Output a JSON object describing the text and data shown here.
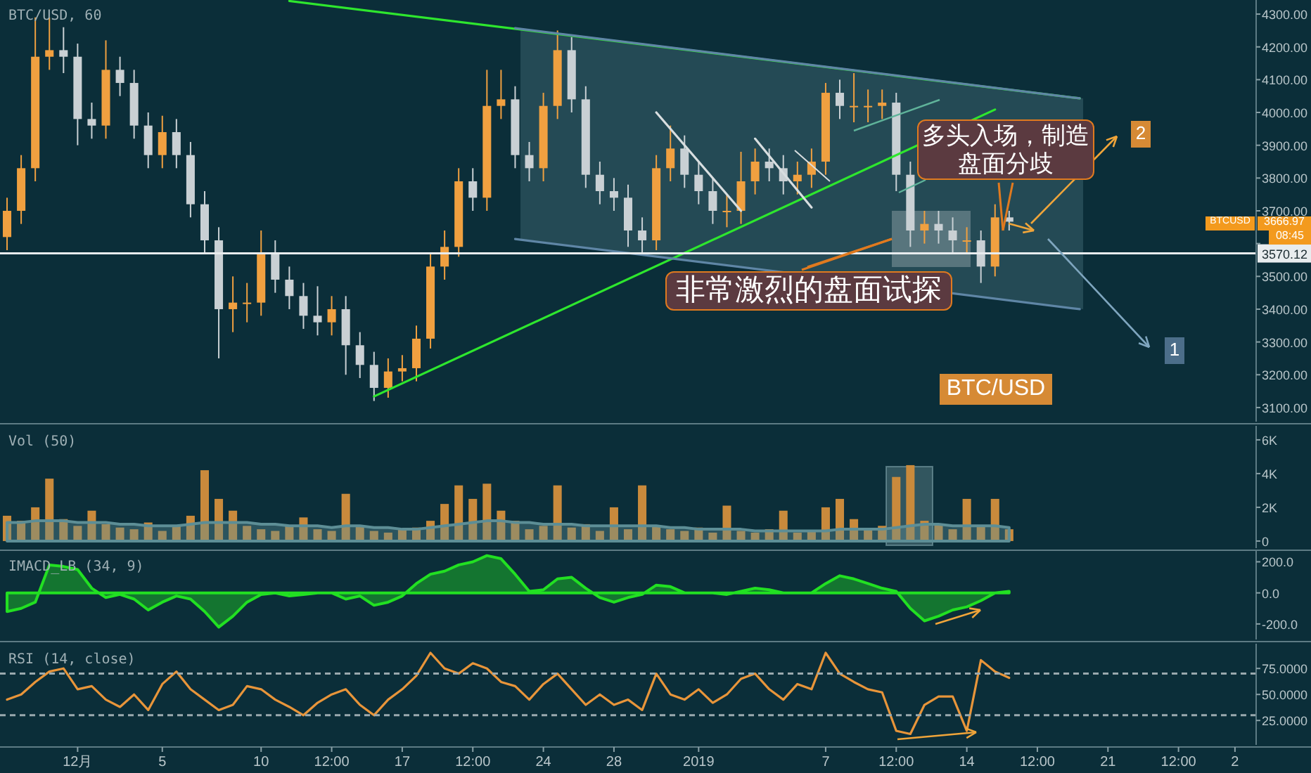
{
  "chart_data": [
    {
      "type": "candlestick",
      "title": "BTC/USD, 60",
      "tick_labels": "y",
      "ylim": [
        3057,
        4343
      ],
      "yticks": [
        {
          "value": 3100,
          "label": "3100.00"
        },
        {
          "value": 3200,
          "label": "3200.00"
        },
        {
          "value": 3300,
          "label": "3300.00"
        },
        {
          "value": 3400,
          "label": "3400.00"
        },
        {
          "value": 3500,
          "label": "3500.00"
        },
        {
          "value": 3600,
          "label": null
        },
        {
          "value": 3700,
          "label": "3700.00"
        },
        {
          "value": 3800,
          "label": "3800.00"
        },
        {
          "value": 3900,
          "label": "3900.00"
        },
        {
          "value": 4000,
          "label": "4000.00"
        },
        {
          "value": 4100,
          "label": "4100.00"
        },
        {
          "value": 4200,
          "label": "4200.00"
        },
        {
          "value": 4300,
          "label": "4300.00"
        }
      ],
      "categories": [
        null,
        null,
        null,
        null,
        null,
        null,
        null,
        null,
        null,
        null,
        null,
        null,
        null,
        null,
        null,
        null,
        null,
        null,
        null,
        null,
        null,
        null,
        null,
        null,
        null,
        null,
        null,
        null,
        null,
        null,
        null,
        null,
        null,
        null,
        null,
        null,
        null,
        null,
        null,
        null,
        null,
        null,
        null,
        null,
        null,
        null,
        null,
        null,
        null,
        null,
        null,
        null,
        null,
        null,
        null,
        null,
        null,
        null,
        null,
        null,
        null,
        null,
        null,
        null,
        null,
        null,
        null,
        null,
        null,
        null,
        null,
        null,
        null,
        null,
        null,
        null,
        null,
        null,
        null,
        null,
        null,
        null,
        null,
        null,
        null,
        null,
        null,
        null,
        null
      ],
      "ohlc": [
        [
          3620,
          3740,
          3580,
          3700
        ],
        [
          3700,
          3870,
          3660,
          3830
        ],
        [
          3830,
          4290,
          3790,
          4170
        ],
        [
          4170,
          4290,
          4130,
          4190
        ],
        [
          4190,
          4260,
          4120,
          4170
        ],
        [
          4170,
          4210,
          3900,
          3980
        ],
        [
          3980,
          4030,
          3920,
          3960
        ],
        [
          3960,
          4220,
          3920,
          4130
        ],
        [
          4130,
          4170,
          4050,
          4090
        ],
        [
          4090,
          4130,
          3920,
          3960
        ],
        [
          3960,
          4000,
          3830,
          3870
        ],
        [
          3870,
          3990,
          3830,
          3940
        ],
        [
          3940,
          3980,
          3830,
          3870
        ],
        [
          3870,
          3910,
          3680,
          3720
        ],
        [
          3720,
          3760,
          3570,
          3610
        ],
        [
          3610,
          3650,
          3250,
          3400
        ],
        [
          3400,
          3500,
          3330,
          3420
        ],
        [
          3420,
          3480,
          3360,
          3420
        ],
        [
          3420,
          3640,
          3380,
          3570
        ],
        [
          3570,
          3610,
          3450,
          3490
        ],
        [
          3490,
          3530,
          3400,
          3440
        ],
        [
          3440,
          3480,
          3340,
          3380
        ],
        [
          3380,
          3470,
          3320,
          3360
        ],
        [
          3360,
          3440,
          3320,
          3400
        ],
        [
          3400,
          3440,
          3200,
          3290
        ],
        [
          3290,
          3330,
          3190,
          3230
        ],
        [
          3230,
          3270,
          3120,
          3160
        ],
        [
          3160,
          3250,
          3130,
          3210
        ],
        [
          3210,
          3260,
          3180,
          3220
        ],
        [
          3220,
          3350,
          3180,
          3310
        ],
        [
          3310,
          3570,
          3280,
          3530
        ],
        [
          3530,
          3640,
          3490,
          3590
        ],
        [
          3590,
          3830,
          3560,
          3790
        ],
        [
          3790,
          3830,
          3700,
          3740
        ],
        [
          3740,
          4130,
          3700,
          4020
        ],
        [
          4020,
          4130,
          3980,
          4040
        ],
        [
          4040,
          4080,
          3830,
          3870
        ],
        [
          3870,
          3910,
          3790,
          3830
        ],
        [
          3830,
          4060,
          3790,
          4020
        ],
        [
          4020,
          4250,
          3980,
          4190
        ],
        [
          4190,
          4230,
          4000,
          4040
        ],
        [
          4040,
          4080,
          3770,
          3810
        ],
        [
          3810,
          3850,
          3720,
          3760
        ],
        [
          3760,
          3800,
          3700,
          3740
        ],
        [
          3740,
          3780,
          3590,
          3640
        ],
        [
          3640,
          3680,
          3570,
          3610
        ],
        [
          3610,
          3870,
          3580,
          3830
        ],
        [
          3830,
          3960,
          3790,
          3890
        ],
        [
          3890,
          3930,
          3770,
          3810
        ],
        [
          3810,
          3850,
          3720,
          3760
        ],
        [
          3760,
          3800,
          3660,
          3700
        ],
        [
          3700,
          3750,
          3650,
          3700
        ],
        [
          3700,
          3880,
          3660,
          3790
        ],
        [
          3790,
          3890,
          3750,
          3850
        ],
        [
          3850,
          3890,
          3790,
          3830
        ],
        [
          3830,
          3870,
          3750,
          3790
        ],
        [
          3790,
          3850,
          3750,
          3810
        ],
        [
          3810,
          3890,
          3770,
          3850
        ],
        [
          3850,
          4090,
          3810,
          4060
        ],
        [
          4060,
          4100,
          3980,
          4020
        ],
        [
          4020,
          4120,
          3970,
          4020
        ],
        [
          4020,
          4070,
          3970,
          4020
        ],
        [
          4020,
          4070,
          3980,
          4030
        ],
        [
          4030,
          4060,
          3760,
          3810
        ],
        [
          3810,
          3850,
          3590,
          3640
        ],
        [
          3640,
          3700,
          3600,
          3660
        ],
        [
          3660,
          3700,
          3600,
          3640
        ],
        [
          3640,
          3680,
          3570,
          3610
        ],
        [
          3610,
          3650,
          3570,
          3610
        ],
        [
          3610,
          3640,
          3480,
          3530
        ],
        [
          3530,
          3720,
          3500,
          3680
        ],
        [
          3680,
          3700,
          3640,
          3666.97
        ],
        null,
        null,
        null,
        null,
        null,
        null,
        null,
        null,
        null,
        null,
        null,
        null,
        null,
        null,
        null,
        null,
        null
      ],
      "series": [
        {
          "type": "line",
          "color": "#2ee62e",
          "values": [
            null,
            null,
            null,
            null,
            null,
            null,
            null,
            null,
            null,
            null,
            null,
            null,
            null,
            null,
            null,
            null,
            null,
            null,
            null,
            null,
            4340,
            null,
            null,
            null,
            null,
            null,
            null,
            null,
            null,
            null,
            null,
            null,
            null,
            null,
            null,
            null,
            null,
            null,
            null,
            null,
            null,
            null,
            null,
            null,
            null,
            null,
            null,
            null,
            null,
            null,
            null,
            null,
            null,
            null,
            null,
            null,
            null,
            null,
            null,
            null,
            null,
            null,
            null,
            null,
            null,
            null,
            null,
            null,
            null,
            null,
            null,
            null,
            null,
            null,
            null,
            null,
            4043,
            null,
            null,
            null,
            null,
            null,
            null,
            null,
            null,
            null,
            null,
            null,
            null
          ]
        },
        {
          "type": "line",
          "color": "#2ee62e",
          "values": [
            null,
            null,
            null,
            null,
            null,
            null,
            null,
            null,
            null,
            null,
            null,
            null,
            null,
            null,
            null,
            null,
            null,
            null,
            null,
            null,
            null,
            null,
            null,
            null,
            null,
            null,
            3134,
            null,
            null,
            null,
            null,
            null,
            null,
            null,
            null,
            null,
            null,
            null,
            null,
            null,
            null,
            null,
            null,
            null,
            null,
            null,
            null,
            null,
            null,
            null,
            null,
            null,
            null,
            null,
            null,
            null,
            null,
            null,
            null,
            null,
            null,
            null,
            null,
            null,
            null,
            null,
            null,
            null,
            null,
            null,
            4009,
            null,
            null,
            null,
            null,
            null,
            null,
            null,
            null,
            null,
            null,
            null,
            null,
            null,
            null,
            null,
            null,
            null,
            null
          ]
        },
        {
          "type": "line",
          "color": "#5f86a6",
          "values": [
            null,
            null,
            null,
            null,
            null,
            null,
            null,
            null,
            null,
            null,
            null,
            null,
            null,
            null,
            null,
            null,
            null,
            null,
            null,
            null,
            null,
            null,
            null,
            null,
            null,
            null,
            null,
            null,
            null,
            null,
            null,
            null,
            null,
            null,
            null,
            null,
            4257,
            null,
            null,
            null,
            null,
            null,
            null,
            null,
            null,
            null,
            null,
            null,
            null,
            null,
            null,
            null,
            null,
            null,
            null,
            null,
            null,
            null,
            null,
            null,
            null,
            null,
            null,
            null,
            null,
            null,
            null,
            null,
            null,
            null,
            null,
            null,
            null,
            null,
            null,
            null,
            4043,
            null,
            null,
            null,
            null,
            null,
            null,
            null,
            null,
            null,
            null,
            null,
            null
          ]
        },
        {
          "type": "line",
          "color": "#5f86a6",
          "values": [
            null,
            null,
            null,
            null,
            null,
            null,
            null,
            null,
            null,
            null,
            null,
            null,
            null,
            null,
            null,
            null,
            null,
            null,
            null,
            null,
            null,
            null,
            null,
            null,
            null,
            null,
            null,
            null,
            null,
            null,
            null,
            null,
            null,
            null,
            null,
            null,
            3614,
            null,
            null,
            null,
            null,
            null,
            null,
            null,
            null,
            null,
            null,
            null,
            null,
            null,
            null,
            null,
            null,
            null,
            null,
            null,
            null,
            null,
            null,
            null,
            null,
            null,
            null,
            null,
            null,
            null,
            null,
            null,
            null,
            null,
            null,
            null,
            null,
            null,
            null,
            null,
            3400,
            null,
            null,
            null,
            null,
            null,
            null,
            null,
            null,
            null,
            null,
            null,
            null
          ]
        },
        {
          "type": "line",
          "color": "#d8dee0",
          "values": [
            null,
            null,
            null,
            null,
            null,
            null,
            null,
            null,
            null,
            null,
            null,
            null,
            null,
            null,
            null,
            null,
            null,
            null,
            null,
            null,
            null,
            null,
            null,
            null,
            null,
            null,
            null,
            null,
            null,
            null,
            null,
            null,
            null,
            null,
            null,
            null,
            null,
            null,
            null,
            null,
            null,
            null,
            null,
            null,
            null,
            null,
            4000,
            null,
            null,
            null,
            null,
            null,
            3700,
            null,
            null,
            null,
            null,
            null,
            null,
            null,
            null,
            null,
            null,
            null,
            null,
            null,
            null,
            null,
            null,
            null,
            null,
            null,
            null,
            null,
            null,
            null,
            null,
            null,
            null,
            null,
            null,
            null,
            null,
            null,
            null,
            null,
            null,
            null,
            null
          ]
        },
        {
          "type": "line",
          "color": "#d8dee0",
          "values": [
            null,
            null,
            null,
            null,
            null,
            null,
            null,
            null,
            null,
            null,
            null,
            null,
            null,
            null,
            null,
            null,
            null,
            null,
            null,
            null,
            null,
            null,
            null,
            null,
            null,
            null,
            null,
            null,
            null,
            null,
            null,
            null,
            null,
            null,
            null,
            null,
            null,
            null,
            null,
            null,
            null,
            null,
            null,
            null,
            null,
            null,
            null,
            null,
            null,
            null,
            null,
            null,
            null,
            3920,
            null,
            null,
            null,
            3710,
            null,
            null,
            null,
            null,
            null,
            null,
            null,
            null,
            null,
            null,
            null,
            null,
            null,
            null,
            null,
            null,
            null,
            null,
            null,
            null,
            null,
            null,
            null,
            null,
            null,
            null,
            null,
            null,
            null,
            null,
            null
          ]
        }
      ],
      "ref_lines": [
        {
          "axis": "y",
          "value": 3570.12,
          "label": "3570.12",
          "color": "#e8ecee"
        }
      ],
      "annotations": [
        {
          "text": "多头入场，制造盘面分歧",
          "y": 3640
        },
        "非常激烈的盘面试探",
        "BTC/USD",
        "2",
        "1",
        "BTCUSD",
        "3666.97",
        "08:45"
      ]
    },
    {
      "type": "bar",
      "title": "Vol (50)",
      "tick_labels": "y",
      "color": "#c98a3c",
      "ylim": [
        -420,
        6830
      ],
      "yticks": [
        0,
        {
          "value": 2000,
          "label": "2K"
        },
        {
          "value": 4000,
          "label": "4K"
        },
        {
          "value": 6000,
          "label": "6K"
        }
      ],
      "categories": [
        null,
        null,
        null,
        null,
        null,
        null,
        null,
        null,
        null,
        null,
        null,
        null,
        null,
        null,
        null,
        null,
        null,
        null,
        null,
        null,
        null,
        null,
        null,
        null,
        null,
        null,
        null,
        null,
        null,
        null,
        null,
        null,
        null,
        null,
        null,
        null,
        null,
        null,
        null,
        null,
        null,
        null,
        null,
        null,
        null,
        null,
        null,
        null,
        null,
        null,
        null,
        null,
        null,
        null,
        null,
        null,
        null,
        null,
        null,
        null,
        null,
        null,
        null,
        null,
        null,
        null,
        null,
        null,
        null,
        null,
        null,
        null,
        null,
        null,
        null,
        null,
        null,
        null,
        null,
        null,
        null,
        null,
        null,
        null,
        null,
        null,
        null,
        null,
        null
      ],
      "values": [
        1500,
        1200,
        2000,
        3700,
        1300,
        900,
        1800,
        1000,
        800,
        700,
        1100,
        600,
        900,
        1500,
        4200,
        2500,
        1800,
        900,
        700,
        600,
        900,
        1400,
        700,
        600,
        2800,
        900,
        600,
        500,
        700,
        800,
        1200,
        2200,
        3300,
        2500,
        3400,
        1800,
        1200,
        700,
        900,
        3300,
        800,
        1000,
        600,
        2000,
        700,
        3300,
        900,
        700,
        600,
        800,
        500,
        2100,
        600,
        500,
        700,
        1800,
        500,
        600,
        2000,
        2500,
        1300,
        700,
        900,
        3800,
        4500,
        1200,
        1000,
        700,
        2500,
        900,
        2500,
        700,
        null,
        null,
        null,
        null,
        null,
        null,
        null,
        null,
        null,
        null,
        null,
        null,
        null,
        null,
        null,
        null,
        null
      ],
      "series": [
        {
          "type": "area",
          "color": "#5d8e96",
          "values": [
            1100,
            1100,
            1200,
            1200,
            1200,
            1100,
            1100,
            1100,
            1000,
            1000,
            900,
            900,
            900,
            1000,
            1100,
            1100,
            1100,
            1100,
            1000,
            1000,
            900,
            900,
            900,
            800,
            900,
            900,
            800,
            800,
            700,
            700,
            800,
            900,
            1000,
            1100,
            1200,
            1200,
            1100,
            1100,
            1000,
            1000,
            1000,
            900,
            900,
            900,
            900,
            900,
            900,
            800,
            800,
            700,
            700,
            700,
            700,
            600,
            600,
            600,
            600,
            600,
            600,
            700,
            700,
            700,
            700,
            800,
            900,
            1000,
            1000,
            900,
            900,
            900,
            900,
            800,
            null,
            null,
            null,
            null,
            null,
            null,
            null,
            null,
            null,
            null,
            null,
            null,
            null,
            null,
            null,
            null,
            null
          ]
        }
      ]
    },
    {
      "type": "area",
      "title": "IMACD_LB (34, 9)",
      "tick_labels": "y",
      "color": "#22e022",
      "ylim": [
        -300,
        270
      ],
      "yticks": [
        {
          "value": -200,
          "label": "-200.0"
        },
        {
          "value": 0,
          "label": "0.0"
        },
        {
          "value": 200,
          "label": "200.0"
        }
      ],
      "categories": [
        null,
        null,
        null,
        null,
        null,
        null,
        null,
        null,
        null,
        null,
        null,
        null,
        null,
        null,
        null,
        null,
        null,
        null,
        null,
        null,
        null,
        null,
        null,
        null,
        null,
        null,
        null,
        null,
        null,
        null,
        null,
        null,
        null,
        null,
        null,
        null,
        null,
        null,
        null,
        null,
        null,
        null,
        null,
        null,
        null,
        null,
        null,
        null,
        null,
        null,
        null,
        null,
        null,
        null,
        null,
        null,
        null,
        null,
        null,
        null,
        null,
        null,
        null,
        null,
        null,
        null,
        null,
        null,
        null,
        null,
        null,
        null,
        null,
        null,
        null,
        null,
        null,
        null,
        null,
        null,
        null,
        null,
        null,
        null,
        null,
        null,
        null,
        null,
        null
      ],
      "values": [
        -120,
        -100,
        -60,
        180,
        170,
        150,
        30,
        -30,
        -10,
        -40,
        -110,
        -60,
        -20,
        -40,
        -120,
        -220,
        -150,
        -60,
        -10,
        0,
        -20,
        -10,
        0,
        0,
        -40,
        -20,
        -80,
        -60,
        -20,
        60,
        120,
        140,
        180,
        200,
        240,
        220,
        120,
        10,
        20,
        90,
        100,
        30,
        -30,
        -60,
        -30,
        -10,
        50,
        40,
        0,
        0,
        0,
        -10,
        10,
        30,
        20,
        0,
        0,
        0,
        60,
        110,
        90,
        60,
        30,
        10,
        -100,
        -180,
        -150,
        -110,
        -90,
        -50,
        0,
        10,
        null,
        null,
        null,
        null,
        null,
        null,
        null,
        null,
        null,
        null,
        null,
        null,
        null,
        null,
        null,
        null,
        null
      ]
    },
    {
      "type": "line",
      "title": "RSI (14, close)",
      "color": "#e8953a",
      "ylim": [
        1.5,
        98.8
      ],
      "yticks": [
        {
          "value": 25,
          "label": "25.0000"
        },
        {
          "value": 50,
          "label": "50.0000"
        },
        {
          "value": 75,
          "label": "75.0000"
        }
      ],
      "categories": [
        null,
        null,
        null,
        null,
        null,
        "12月",
        null,
        null,
        null,
        null,
        null,
        "5",
        null,
        null,
        null,
        null,
        null,
        null,
        "10",
        null,
        null,
        null,
        null,
        "12:00",
        null,
        null,
        null,
        null,
        "17",
        null,
        null,
        null,
        null,
        "12:00",
        null,
        null,
        null,
        null,
        "24",
        null,
        null,
        null,
        null,
        "28",
        null,
        null,
        null,
        null,
        null,
        "2019",
        null,
        null,
        null,
        null,
        null,
        null,
        null,
        null,
        "7",
        null,
        null,
        null,
        null,
        "12:00",
        null,
        null,
        null,
        null,
        "14",
        null,
        null,
        null,
        null,
        "12:00",
        null,
        null,
        null,
        null,
        "21",
        null,
        null,
        null,
        null,
        "12:00",
        null,
        null,
        null,
        "2",
        null
      ],
      "values": [
        45,
        50,
        62,
        72,
        75,
        55,
        58,
        45,
        38,
        50,
        35,
        60,
        72,
        55,
        45,
        35,
        40,
        58,
        55,
        45,
        38,
        30,
        42,
        50,
        55,
        40,
        30,
        45,
        55,
        68,
        90,
        75,
        70,
        80,
        75,
        62,
        58,
        45,
        60,
        70,
        55,
        40,
        50,
        40,
        45,
        35,
        70,
        50,
        45,
        55,
        42,
        50,
        65,
        70,
        55,
        45,
        60,
        55,
        90,
        70,
        62,
        55,
        52,
        15,
        12,
        40,
        48,
        48,
        15,
        83,
        72,
        66,
        null,
        null,
        null,
        null,
        null,
        null,
        null,
        null,
        null,
        null,
        null,
        null,
        null,
        null,
        null,
        null,
        null
      ],
      "ref_lines": [
        {
          "axis": "y",
          "value": 70,
          "color": "#9aa9ae",
          "line_style": "dashed"
        },
        {
          "axis": "y",
          "value": 30,
          "color": "#9aa9ae",
          "line_style": "dashed"
        }
      ]
    }
  ]
}
